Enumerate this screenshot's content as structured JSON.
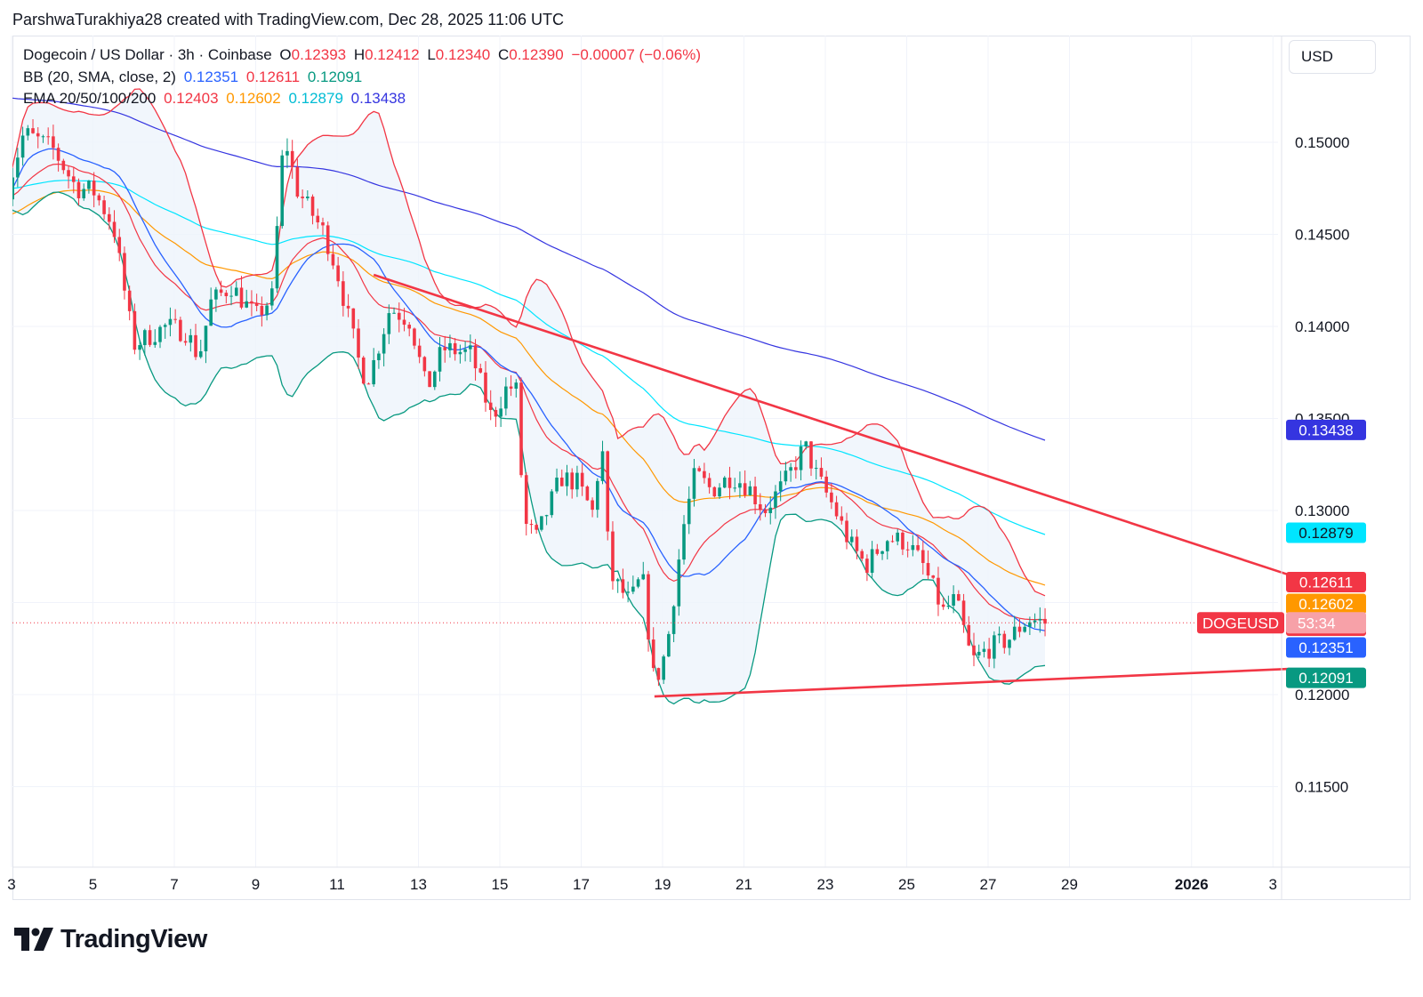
{
  "header": {
    "credit": "ParshwaTurakhiya28 created with TradingView.com, Dec 28, 2025 11:06 UTC"
  },
  "legend": {
    "symbol_line": "Dogecoin / US Dollar · 3h · Coinbase",
    "o_label": "O",
    "o_value": "0.12393",
    "h_label": "H",
    "h_value": "0.12412",
    "l_label": "L",
    "l_value": "0.12340",
    "c_label": "C",
    "c_value": "0.12390",
    "change": "−0.00007 (−0.06%)",
    "bb_label": "BB (20, SMA, close, 2)",
    "bb_values": [
      "0.12351",
      "0.12611",
      "0.12091"
    ],
    "ema_label": "EMA 20/50/100/200",
    "ema_values": [
      "0.12403",
      "0.12602",
      "0.12879",
      "0.13438"
    ]
  },
  "currency": "USD",
  "ticker_label": "DOGEUSD",
  "countdown": "53:34",
  "brand": "TradingView",
  "colors": {
    "up": "#089981",
    "down": "#f23645",
    "bb_basis": "#2962ff",
    "bb_upper": "#f23645",
    "bb_lower": "#089981",
    "ema20": "#f23645",
    "ema50": "#ff9800",
    "ema100": "#00e5ff",
    "ema200": "#3535e0",
    "trendline": "#f23645",
    "band_fill": "#eef4fb"
  },
  "chart_data": {
    "type": "candlestick",
    "symbol": "DOGEUSD",
    "timeframe": "3h",
    "x_tick_labels": [
      "3",
      "5",
      "7",
      "9",
      "11",
      "13",
      "15",
      "17",
      "19",
      "21",
      "23",
      "25",
      "27",
      "29",
      "2026",
      "3"
    ],
    "y_tick_labels": [
      "0.11500",
      "0.12000",
      "0.12500",
      "0.13000",
      "0.13500",
      "0.14000",
      "0.14500",
      "0.15000"
    ],
    "ylim": [
      0.1115,
      0.1535
    ],
    "grid": true,
    "price_labels": [
      {
        "text": "0.13438",
        "color": "#3535e0",
        "value": 0.13438
      },
      {
        "text": "0.12879",
        "color": "#00e5ff",
        "value": 0.12879
      },
      {
        "text": "0.12611",
        "color": "#f23645",
        "value": 0.12611
      },
      {
        "text": "0.12602",
        "color": "#ff9800",
        "value": 0.12602
      },
      {
        "text": "0.12403",
        "color": "#f23645",
        "value": 0.12403
      },
      {
        "text": "0.12351",
        "color": "#2962ff",
        "value": 0.12351
      },
      {
        "text": "0.12091",
        "color": "#089981",
        "value": 0.12091
      }
    ],
    "last_price": 0.1239,
    "trendlines": [
      {
        "name": "descending-resistance",
        "points": [
          [
            11.9,
            0.1428
          ],
          [
            34.4,
            0.1265
          ]
        ]
      },
      {
        "name": "ascending-support",
        "points": [
          [
            18.8,
            0.1199
          ],
          [
            34.4,
            0.1214
          ]
        ]
      }
    ],
    "anchors": [
      [
        2.9,
        0.1475
      ],
      [
        3.3,
        0.1505
      ],
      [
        4.0,
        0.1497
      ],
      [
        4.6,
        0.1475
      ],
      [
        5.0,
        0.1474
      ],
      [
        5.5,
        0.1455
      ],
      [
        6.0,
        0.139
      ],
      [
        6.8,
        0.14
      ],
      [
        7.3,
        0.1397
      ],
      [
        7.6,
        0.1383
      ],
      [
        7.9,
        0.1413
      ],
      [
        8.4,
        0.1422
      ],
      [
        9.0,
        0.1405
      ],
      [
        9.4,
        0.1416
      ],
      [
        9.7,
        0.1505
      ],
      [
        10.0,
        0.1475
      ],
      [
        10.7,
        0.145
      ],
      [
        11.0,
        0.143
      ],
      [
        11.6,
        0.1375
      ],
      [
        11.8,
        0.1373
      ],
      [
        12.3,
        0.141
      ],
      [
        12.8,
        0.1403
      ],
      [
        13.2,
        0.1365
      ],
      [
        13.6,
        0.1388
      ],
      [
        14.3,
        0.1385
      ],
      [
        14.8,
        0.135
      ],
      [
        15.2,
        0.1368
      ],
      [
        15.4,
        0.1365
      ],
      [
        15.6,
        0.1293
      ],
      [
        15.9,
        0.1285
      ],
      [
        16.5,
        0.1318
      ],
      [
        16.9,
        0.1315
      ],
      [
        17.3,
        0.1298
      ],
      [
        17.5,
        0.134
      ],
      [
        17.7,
        0.1265
      ],
      [
        18.2,
        0.125
      ],
      [
        18.5,
        0.1265
      ],
      [
        18.8,
        0.1205
      ],
      [
        19.1,
        0.1225
      ],
      [
        19.5,
        0.129
      ],
      [
        19.8,
        0.132
      ],
      [
        20.2,
        0.1311
      ],
      [
        20.7,
        0.1319
      ],
      [
        21.1,
        0.1313
      ],
      [
        21.5,
        0.13
      ],
      [
        22.0,
        0.1315
      ],
      [
        22.5,
        0.1335
      ],
      [
        22.8,
        0.1318
      ],
      [
        23.2,
        0.1302
      ],
      [
        23.6,
        0.1282
      ],
      [
        24.0,
        0.127
      ],
      [
        24.5,
        0.1285
      ],
      [
        25.0,
        0.1283
      ],
      [
        25.4,
        0.127
      ],
      [
        25.9,
        0.1245
      ],
      [
        26.2,
        0.1252
      ],
      [
        26.6,
        0.1218
      ],
      [
        27.0,
        0.1225
      ],
      [
        27.5,
        0.123
      ],
      [
        27.8,
        0.1237
      ],
      [
        28.0,
        0.1241
      ],
      [
        28.4,
        0.1239
      ]
    ]
  }
}
